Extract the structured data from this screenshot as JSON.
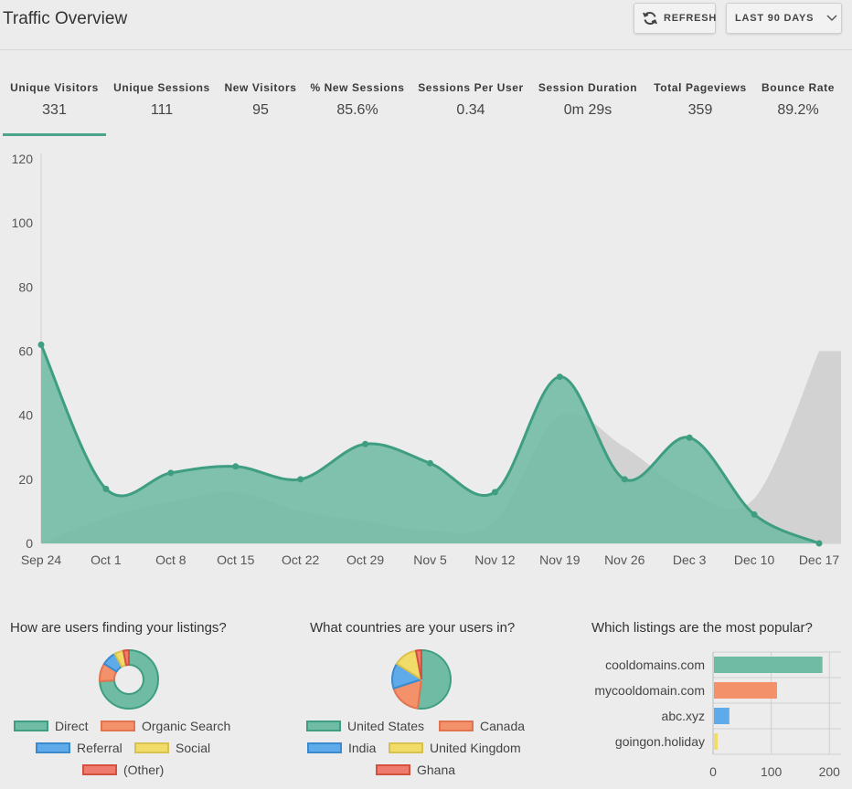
{
  "header": {
    "title": "Traffic Overview",
    "refresh_label": "REFRESH",
    "range_label": "LAST 90 DAYS"
  },
  "metrics": [
    {
      "label": "Unique Visitors",
      "value": "331"
    },
    {
      "label": "Unique Sessions",
      "value": "111"
    },
    {
      "label": "New Visitors",
      "value": "95"
    },
    {
      "label": "% New Sessions",
      "value": "85.6%"
    },
    {
      "label": "Sessions Per User",
      "value": "0.34"
    },
    {
      "label": "Session Duration",
      "value": "0m 29s"
    },
    {
      "label": "Total Pageviews",
      "value": "359"
    },
    {
      "label": "Bounce Rate",
      "value": "89.2%"
    }
  ],
  "active_metric": "Unique Visitors",
  "colors": {
    "green": "#6fbba3",
    "green_line": "#3f9e82",
    "orange": "#f2916a",
    "orange_line": "#e27350",
    "blue": "#5faae8",
    "blue_line": "#3a8ad0",
    "yellow": "#f1dc6a",
    "yellow_line": "#d8c24d",
    "red": "#ee7b6d",
    "red_line": "#d4503f",
    "gray": "#d2d2d2"
  },
  "chart_data": [
    {
      "type": "area",
      "x": [
        "Sep 24",
        "Oct 1",
        "Oct 8",
        "Oct 15",
        "Oct 22",
        "Oct 29",
        "Nov 5",
        "Nov 12",
        "Nov 19",
        "Nov 26",
        "Dec 3",
        "Dec 10",
        "Dec 17"
      ],
      "ylim": [
        0,
        120
      ],
      "yticks": [
        0,
        20,
        40,
        60,
        80,
        100,
        120
      ],
      "series": [
        {
          "values": [
            62,
            17,
            22,
            24,
            20,
            31,
            25,
            16,
            52,
            20,
            33,
            9,
            0
          ]
        },
        {
          "values": [
            0,
            8,
            13,
            16,
            10,
            7,
            4,
            7,
            40,
            30,
            16,
            14,
            60
          ]
        }
      ]
    },
    {
      "type": "pie",
      "title": "How are users finding your listings?",
      "labels": [
        "Direct",
        "Organic Search",
        "Referral",
        "Social",
        "(Other)"
      ],
      "values": [
        74,
        10,
        8,
        5,
        3
      ],
      "donut": true
    },
    {
      "type": "pie",
      "title": "What countries are your users in?",
      "labels": [
        "United States",
        "Canada",
        "India",
        "United Kingdom",
        "Ghana"
      ],
      "values": [
        52,
        18,
        14,
        13,
        3
      ],
      "donut": false
    },
    {
      "type": "bar",
      "title": "Which listings are the most popular?",
      "categories": [
        "cooldomains.com",
        "mycooldomain.com",
        "abc.xyz",
        "goingon.holiday"
      ],
      "values": [
        188,
        110,
        28,
        8
      ],
      "xticks": [
        0,
        100,
        200
      ],
      "xlim": [
        0,
        220
      ]
    }
  ]
}
